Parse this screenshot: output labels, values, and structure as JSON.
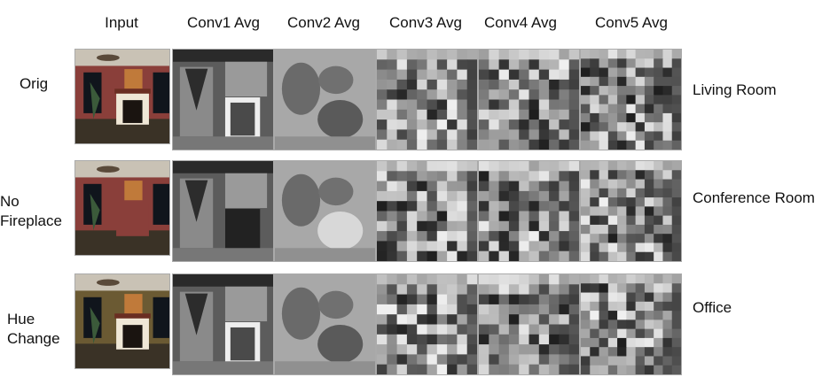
{
  "columns": [
    "Input",
    "Conv1 Avg",
    "Conv2 Avg",
    "Conv3 Avg",
    "Conv4 Avg",
    "Conv5 Avg"
  ],
  "rows": [
    {
      "label_lines": [
        "Orig"
      ],
      "prediction": "Living Room"
    },
    {
      "label_lines": [
        "No",
        "Fireplace"
      ],
      "prediction": "Conference Room"
    },
    {
      "label_lines": [
        "Hue",
        "Change"
      ],
      "prediction": "Office"
    }
  ]
}
